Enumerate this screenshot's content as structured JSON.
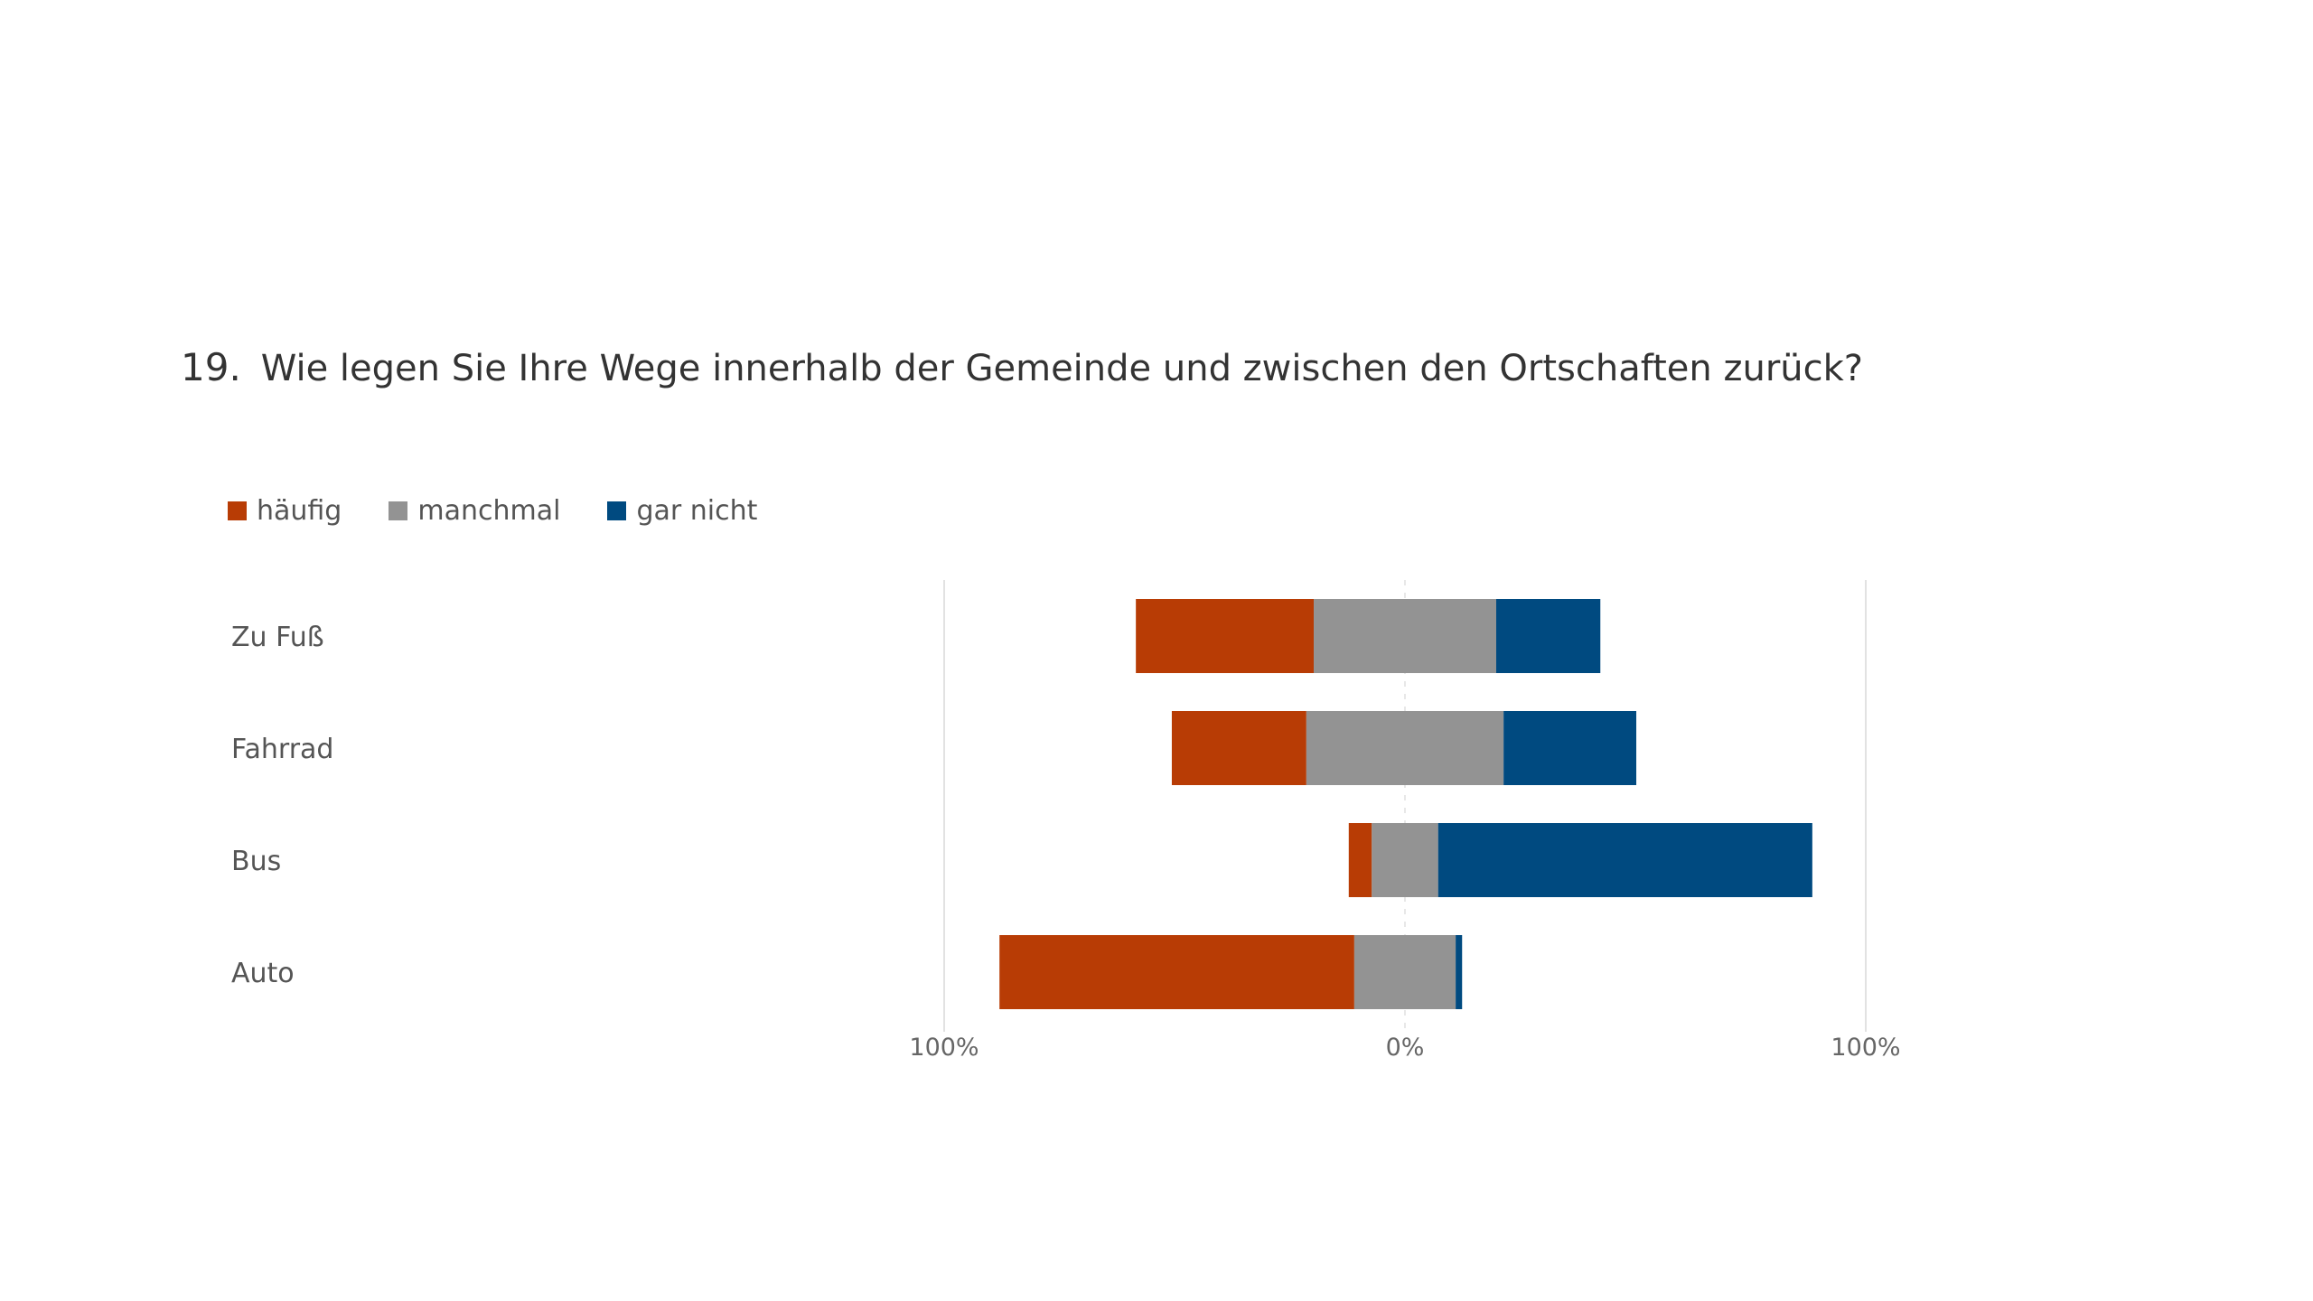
{
  "question": {
    "number": "19.",
    "text": "Wie legen Sie Ihre Wege innerhalb der Gemeinde und zwischen den Ortschaften zurück?"
  },
  "legend": [
    {
      "label": "häufig",
      "color": "#b83c05"
    },
    {
      "label": "manchmal",
      "color": "#939393"
    },
    {
      "label": "gar nicht",
      "color": "#004a80"
    }
  ],
  "chart_data": {
    "type": "bar",
    "orientation": "horizontal",
    "stacking": "diverging",
    "categories": [
      "Zu Fuß",
      "Fahrrad",
      "Bus",
      "Auto"
    ],
    "series": [
      {
        "name": "häufig",
        "values": [
          38.6,
          29.2,
          5.0,
          77.0
        ]
      },
      {
        "name": "manchmal",
        "values": [
          39.6,
          42.8,
          14.4,
          22.0
        ]
      },
      {
        "name": "gar nicht",
        "values": [
          22.6,
          28.8,
          81.2,
          1.4
        ]
      }
    ],
    "colors": [
      "#b83c05",
      "#939393",
      "#004a80"
    ],
    "x_ticks": [
      "100%",
      "0%",
      "100%"
    ],
    "xlim": [
      -100,
      100
    ],
    "legend_position": "top-left",
    "grid": true
  }
}
